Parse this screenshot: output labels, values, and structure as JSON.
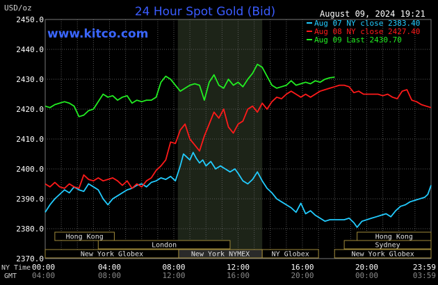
{
  "chart_data": {
    "type": "line",
    "title": "24 Hour Spot Gold (Bid)",
    "watermark": "www.kitco.com",
    "timestamp": "August 09, 2024 19:21",
    "ylabel": "USD/oz",
    "ylim": [
      2370,
      2450
    ],
    "yticks": [
      "2450.0",
      "2440.0",
      "2430.0",
      "2420.0",
      "2410.0",
      "2400.0",
      "2390.0",
      "2380.0",
      "2370.0"
    ],
    "x_row_labels": {
      "nytime": "NY Time",
      "gmt": "GMT"
    },
    "xticks_nytime": [
      "00:00",
      "04:00",
      "08:00",
      "12:00",
      "16:00",
      "20:00",
      "23:59"
    ],
    "xticks_gmt": [
      "04:00",
      "08:00",
      "12:00",
      "16:00",
      "20:00",
      "00:00",
      "03:59"
    ],
    "xlim_hours": [
      0,
      24
    ],
    "shaded_hours": [
      8.25,
      13.5
    ],
    "grid": true,
    "legend_position": "top-right",
    "legend": [
      "Aug 07 NY close 2383.40",
      "Aug 08 NY close 2427.40",
      "Aug 09 Last 2430.70"
    ],
    "series": [
      {
        "name": "Aug 07 NY close 2383.40",
        "color": "#22ccff",
        "points": [
          [
            0,
            2385.5
          ],
          [
            0.3,
            2388
          ],
          [
            0.6,
            2390
          ],
          [
            0.9,
            2391.5
          ],
          [
            1.2,
            2393
          ],
          [
            1.5,
            2392
          ],
          [
            1.8,
            2394
          ],
          [
            2.1,
            2393
          ],
          [
            2.4,
            2392.5
          ],
          [
            2.7,
            2395
          ],
          [
            3,
            2394
          ],
          [
            3.3,
            2393
          ],
          [
            3.6,
            2390
          ],
          [
            3.9,
            2388
          ],
          [
            4.2,
            2390
          ],
          [
            4.5,
            2391
          ],
          [
            4.8,
            2392
          ],
          [
            5.1,
            2393
          ],
          [
            5.4,
            2393.5
          ],
          [
            5.7,
            2394.5
          ],
          [
            6,
            2395
          ],
          [
            6.3,
            2394
          ],
          [
            6.6,
            2395.5
          ],
          [
            6.9,
            2396
          ],
          [
            7.2,
            2397
          ],
          [
            7.5,
            2396.5
          ],
          [
            7.8,
            2397.5
          ],
          [
            8.1,
            2396
          ],
          [
            8.4,
            2401
          ],
          [
            8.6,
            2405
          ],
          [
            8.8,
            2404
          ],
          [
            9,
            2403
          ],
          [
            9.2,
            2405.5
          ],
          [
            9.4,
            2403.5
          ],
          [
            9.6,
            2402
          ],
          [
            9.8,
            2403
          ],
          [
            10,
            2401
          ],
          [
            10.3,
            2402.5
          ],
          [
            10.6,
            2400
          ],
          [
            10.9,
            2401
          ],
          [
            11.2,
            2400
          ],
          [
            11.5,
            2399
          ],
          [
            11.8,
            2400
          ],
          [
            12,
            2398.5
          ],
          [
            12.3,
            2396
          ],
          [
            12.6,
            2395
          ],
          [
            12.9,
            2396.5
          ],
          [
            13.2,
            2399
          ],
          [
            13.5,
            2396
          ],
          [
            13.8,
            2393.5
          ],
          [
            14.1,
            2392
          ],
          [
            14.4,
            2390
          ],
          [
            14.7,
            2389
          ],
          [
            15,
            2388
          ],
          [
            15.3,
            2387
          ],
          [
            15.6,
            2385.5
          ],
          [
            15.9,
            2388.5
          ],
          [
            16.2,
            2385
          ],
          [
            16.5,
            2386
          ],
          [
            16.8,
            2384.5
          ],
          [
            17.1,
            2383.5
          ],
          [
            17.4,
            2382.5
          ],
          [
            17.7,
            2383
          ],
          [
            18,
            2383
          ],
          [
            18.3,
            2383
          ],
          [
            18.6,
            2383
          ],
          [
            18.9,
            2383.5
          ],
          [
            19.2,
            2382
          ],
          [
            19.4,
            2380.5
          ],
          [
            19.7,
            2382.5
          ],
          [
            20,
            2383
          ],
          [
            20.3,
            2383.5
          ],
          [
            20.6,
            2384
          ],
          [
            20.9,
            2384.5
          ],
          [
            21.2,
            2385
          ],
          [
            21.5,
            2384
          ],
          [
            21.8,
            2386
          ],
          [
            22.1,
            2387.5
          ],
          [
            22.4,
            2388
          ],
          [
            22.7,
            2389
          ],
          [
            23,
            2389.5
          ],
          [
            23.3,
            2390
          ],
          [
            23.6,
            2390.5
          ],
          [
            23.8,
            2391.5
          ],
          [
            24,
            2394.5
          ]
        ]
      },
      {
        "name": "Aug 08 NY close 2427.40",
        "color": "#ff1a1a",
        "points": [
          [
            0,
            2395
          ],
          [
            0.3,
            2394
          ],
          [
            0.6,
            2395.5
          ],
          [
            0.9,
            2394
          ],
          [
            1.2,
            2393.5
          ],
          [
            1.5,
            2395
          ],
          [
            1.8,
            2394
          ],
          [
            2.1,
            2393.5
          ],
          [
            2.4,
            2398
          ],
          [
            2.7,
            2396.5
          ],
          [
            3,
            2396
          ],
          [
            3.3,
            2397
          ],
          [
            3.6,
            2396
          ],
          [
            3.9,
            2396.5
          ],
          [
            4.2,
            2397
          ],
          [
            4.5,
            2396
          ],
          [
            4.8,
            2394.5
          ],
          [
            5.1,
            2396
          ],
          [
            5.4,
            2393.5
          ],
          [
            5.7,
            2395
          ],
          [
            6,
            2394
          ],
          [
            6.3,
            2396
          ],
          [
            6.6,
            2397
          ],
          [
            6.9,
            2399.5
          ],
          [
            7.2,
            2401
          ],
          [
            7.5,
            2403
          ],
          [
            7.8,
            2409
          ],
          [
            8.1,
            2408.5
          ],
          [
            8.4,
            2413
          ],
          [
            8.7,
            2415
          ],
          [
            9,
            2410
          ],
          [
            9.3,
            2408
          ],
          [
            9.6,
            2406
          ],
          [
            9.9,
            2411
          ],
          [
            10.2,
            2415
          ],
          [
            10.5,
            2419
          ],
          [
            10.8,
            2417
          ],
          [
            11.1,
            2420
          ],
          [
            11.4,
            2414
          ],
          [
            11.7,
            2412
          ],
          [
            12,
            2415
          ],
          [
            12.3,
            2416
          ],
          [
            12.6,
            2420
          ],
          [
            12.9,
            2421
          ],
          [
            13.2,
            2419
          ],
          [
            13.5,
            2422
          ],
          [
            13.8,
            2420
          ],
          [
            14.1,
            2422.5
          ],
          [
            14.4,
            2424
          ],
          [
            14.7,
            2423.5
          ],
          [
            15,
            2425
          ],
          [
            15.3,
            2426
          ],
          [
            15.6,
            2425
          ],
          [
            15.9,
            2424
          ],
          [
            16.2,
            2425
          ],
          [
            16.5,
            2424
          ],
          [
            16.8,
            2425
          ],
          [
            17.1,
            2426
          ],
          [
            17.4,
            2426.5
          ],
          [
            17.7,
            2427
          ],
          [
            18,
            2427.5
          ],
          [
            18.3,
            2428
          ],
          [
            18.6,
            2428
          ],
          [
            18.9,
            2427.5
          ],
          [
            19.2,
            2425.5
          ],
          [
            19.5,
            2426
          ],
          [
            19.8,
            2425
          ],
          [
            20.1,
            2425
          ],
          [
            20.4,
            2425
          ],
          [
            20.7,
            2425
          ],
          [
            21,
            2424.5
          ],
          [
            21.3,
            2425
          ],
          [
            21.6,
            2424
          ],
          [
            21.9,
            2423.5
          ],
          [
            22.2,
            2426
          ],
          [
            22.5,
            2426.5
          ],
          [
            22.8,
            2423
          ],
          [
            23.1,
            2422.5
          ],
          [
            23.4,
            2421.5
          ],
          [
            23.7,
            2421
          ],
          [
            24,
            2420.5
          ]
        ]
      },
      {
        "name": "Aug 09 Last 2430.70",
        "color": "#22ee22",
        "points": [
          [
            0,
            2421
          ],
          [
            0.3,
            2420.5
          ],
          [
            0.6,
            2421.5
          ],
          [
            0.9,
            2422
          ],
          [
            1.2,
            2422.5
          ],
          [
            1.5,
            2422
          ],
          [
            1.8,
            2421
          ],
          [
            2.1,
            2417.5
          ],
          [
            2.4,
            2418
          ],
          [
            2.7,
            2419.5
          ],
          [
            3,
            2420
          ],
          [
            3.3,
            2422.5
          ],
          [
            3.6,
            2425
          ],
          [
            3.9,
            2424
          ],
          [
            4.2,
            2424.5
          ],
          [
            4.5,
            2423
          ],
          [
            4.8,
            2424
          ],
          [
            5.1,
            2424.5
          ],
          [
            5.4,
            2422
          ],
          [
            5.7,
            2423
          ],
          [
            6,
            2422.5
          ],
          [
            6.3,
            2423
          ],
          [
            6.6,
            2423
          ],
          [
            6.9,
            2424
          ],
          [
            7.2,
            2429
          ],
          [
            7.5,
            2431
          ],
          [
            7.8,
            2430
          ],
          [
            8.1,
            2428
          ],
          [
            8.4,
            2426
          ],
          [
            8.7,
            2427
          ],
          [
            9,
            2428
          ],
          [
            9.3,
            2428.5
          ],
          [
            9.6,
            2428
          ],
          [
            9.9,
            2423
          ],
          [
            10.2,
            2429
          ],
          [
            10.5,
            2431.5
          ],
          [
            10.8,
            2428
          ],
          [
            11.1,
            2427
          ],
          [
            11.4,
            2430
          ],
          [
            11.7,
            2428
          ],
          [
            12,
            2429
          ],
          [
            12.3,
            2427.5
          ],
          [
            12.6,
            2430
          ],
          [
            12.9,
            2432
          ],
          [
            13.2,
            2435
          ],
          [
            13.5,
            2434
          ],
          [
            13.8,
            2431
          ],
          [
            14.1,
            2428
          ],
          [
            14.4,
            2427
          ],
          [
            14.7,
            2427.5
          ],
          [
            15,
            2428
          ],
          [
            15.3,
            2429.5
          ],
          [
            15.6,
            2428
          ],
          [
            15.9,
            2428.5
          ],
          [
            16.2,
            2429
          ],
          [
            16.5,
            2428.5
          ],
          [
            16.8,
            2429.5
          ],
          [
            17.1,
            2429
          ],
          [
            17.4,
            2430
          ],
          [
            17.7,
            2430.5
          ],
          [
            18,
            2430.7
          ]
        ]
      }
    ],
    "sessions": [
      {
        "label": "Hong Kong",
        "row": 0,
        "start": 0.6,
        "end": 4.3,
        "fill": "#000000"
      },
      {
        "label": "London",
        "row": 1,
        "start": 3.3,
        "end": 11.5,
        "fill": "#000000"
      },
      {
        "label": "New York Globex",
        "row": 2,
        "start": 0,
        "end": 8.3,
        "fill": "#000000"
      },
      {
        "label": "New York NYMEX",
        "row": 2,
        "start": 8.3,
        "end": 13.5,
        "fill": "#2a2a2a"
      },
      {
        "label": "NY Globex",
        "row": 2,
        "start": 13.5,
        "end": 17,
        "fill": "#000000"
      },
      {
        "label": "Hong Kong",
        "row": 0,
        "start": 19.4,
        "end": 24,
        "fill": "#000000"
      },
      {
        "label": "Sydney",
        "row": 1,
        "start": 18.6,
        "end": 24,
        "fill": "#000000"
      },
      {
        "label": "New York Globex",
        "row": 2,
        "start": 18,
        "end": 24,
        "fill": "#000000"
      }
    ]
  }
}
